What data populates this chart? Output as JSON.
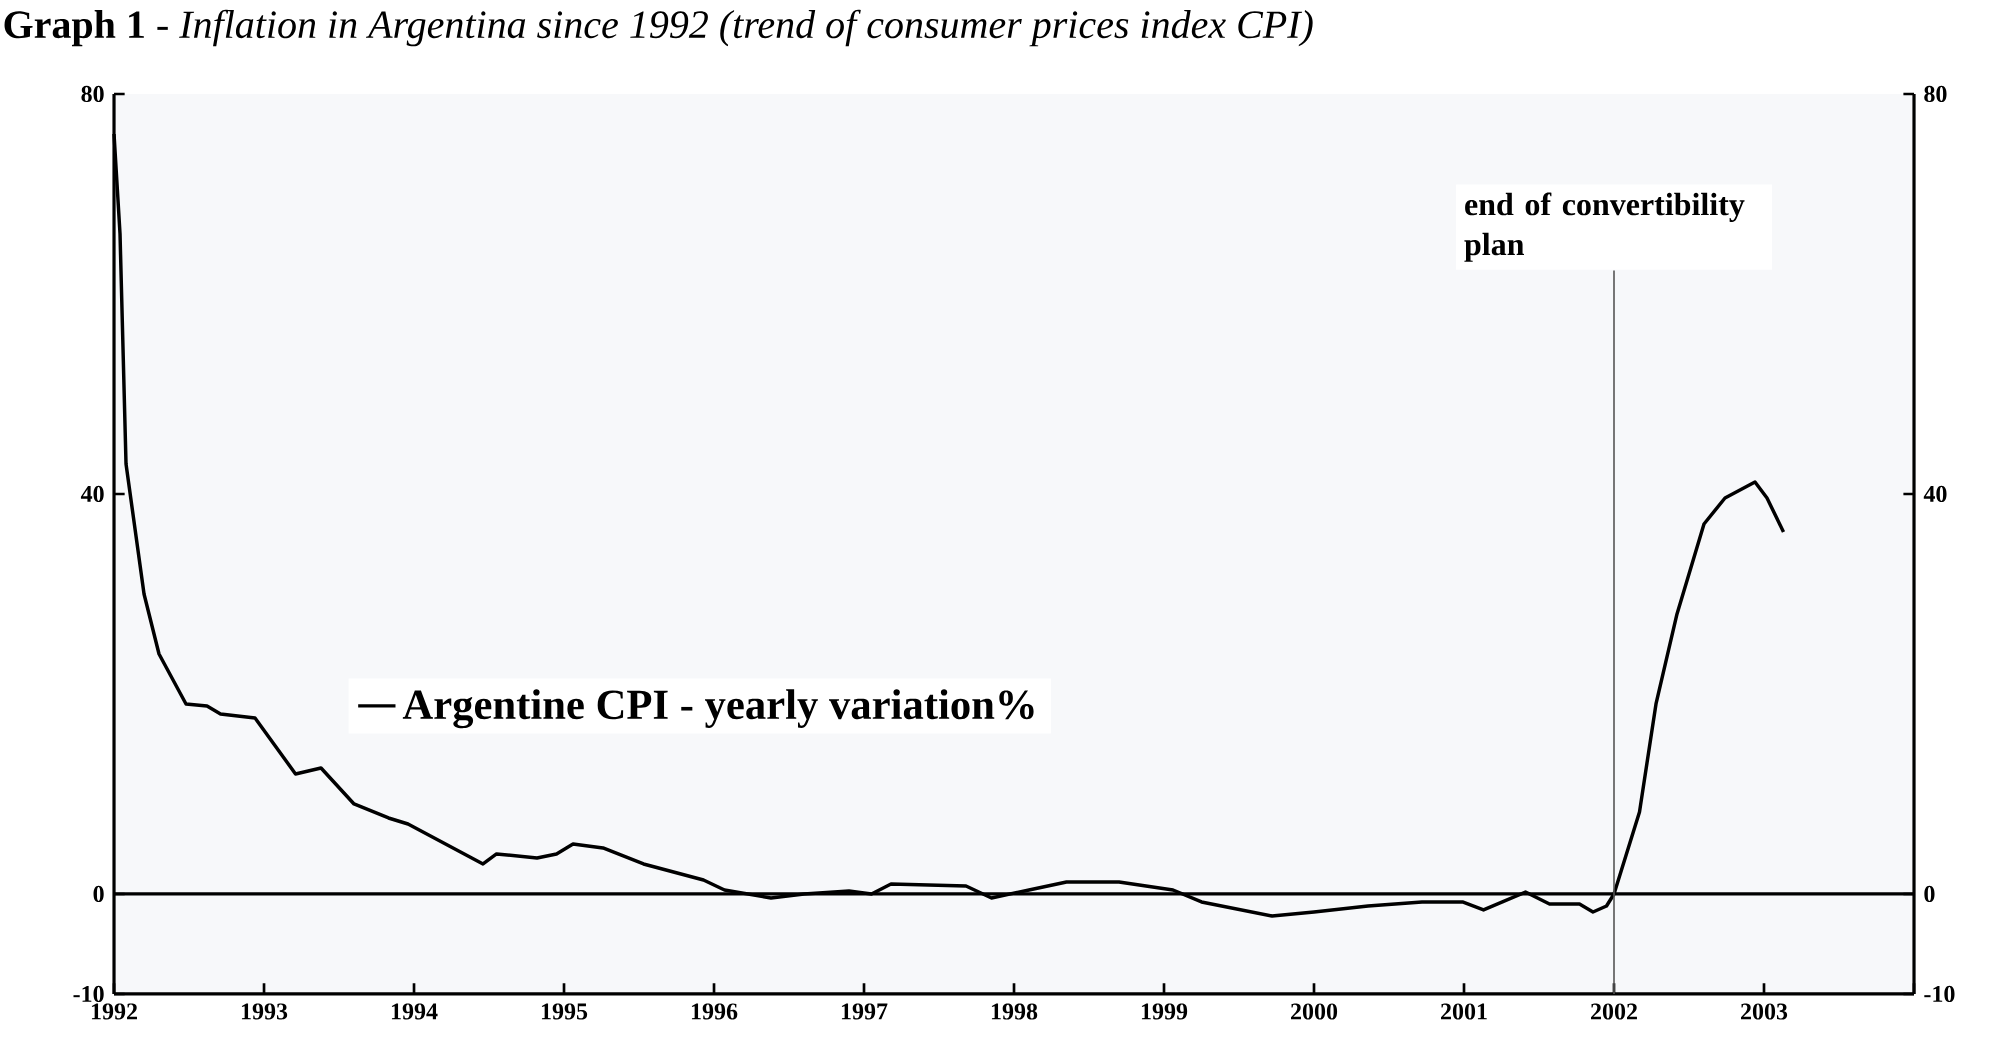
{
  "chart_data": {
    "type": "line",
    "title": "**Graph 1** - *Inflation in Argentina since 1992 (trend of consumer prices index CPI)*",
    "x": [
      1992.0,
      1992.04,
      1992.08,
      1992.2,
      1992.3,
      1992.48,
      1992.62,
      1992.71,
      1992.94,
      1993.21,
      1993.38,
      1993.6,
      1993.83,
      1993.96,
      1994.46,
      1994.55,
      1994.82,
      1994.95,
      1995.06,
      1995.26,
      1995.53,
      1995.93,
      1996.07,
      1996.38,
      1996.6,
      1996.9,
      1997.05,
      1997.18,
      1997.68,
      1997.85,
      1998.1,
      1998.35,
      1998.7,
      1999.06,
      1999.25,
      1999.72,
      2000.0,
      2000.36,
      2000.72,
      2000.99,
      2001.13,
      2001.41,
      2001.57,
      2001.77,
      2001.86,
      2001.95,
      2002.0,
      2002.17,
      2002.28,
      2002.42,
      2002.6,
      2002.74,
      2002.94,
      2003.02,
      2003.13
    ],
    "series": [
      {
        "name": "Argentine CPI - yearly variation%",
        "color": "#000000",
        "values": [
          76,
          66,
          43,
          30,
          24,
          19,
          18.8,
          18,
          17.6,
          12,
          12.6,
          9,
          7.6,
          7,
          3,
          4,
          3.6,
          4,
          5,
          4.6,
          3,
          1.4,
          0.4,
          -0.4,
          0,
          0.3,
          0,
          1,
          0.8,
          -0.4,
          0.4,
          1.2,
          1.2,
          0.4,
          -0.8,
          -2.2,
          -1.8,
          -1.2,
          -0.8,
          -0.8,
          -1.6,
          0.2,
          -1,
          -1,
          -1.8,
          -1.2,
          0,
          8.2,
          19,
          28,
          37,
          39.6,
          41.2,
          39.6,
          36.2
        ]
      }
    ],
    "xlim": [
      1992,
      2004
    ],
    "xticks": [
      1992,
      1993,
      1994,
      1995,
      1996,
      1997,
      1998,
      1999,
      2000,
      2001,
      2002,
      2003,
      {
        "value": 2004,
        "label": null
      }
    ],
    "ylim": [
      -10,
      80
    ],
    "yticks": [
      -10,
      0,
      40,
      80
    ],
    "y2lim": [
      -10,
      80
    ],
    "y2ticks": [
      -10,
      0,
      40,
      80
    ],
    "ref_lines": [
      {
        "axis": "y",
        "value": 0,
        "color": "#000000"
      },
      {
        "axis": "x",
        "value": 2002,
        "label": "end of convertibility plan",
        "color": "#555555"
      }
    ],
    "legend": "left",
    "marker": "none",
    "line_style": "solid"
  }
}
